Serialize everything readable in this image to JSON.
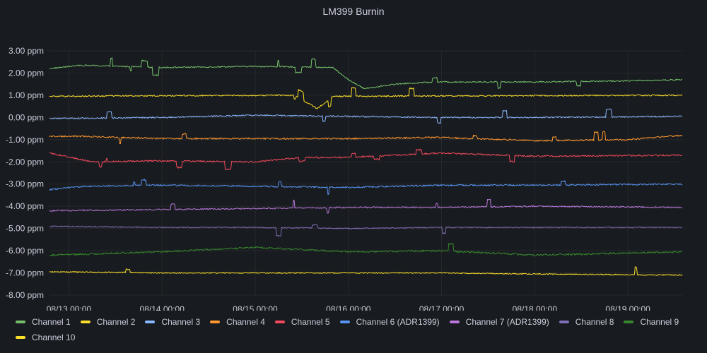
{
  "panel": {
    "title": "LM399 Burnin"
  },
  "chart_data": {
    "type": "line",
    "title": "LM399 Burnin",
    "y_unit": "ppm",
    "ylim": [
      -8.0,
      3.0
    ],
    "y_ticks": [
      "3.00 ppm",
      "2.00 ppm",
      "1.00 ppm",
      "0.00 ppm",
      "-1.00 ppm",
      "-2.00 ppm",
      "-3.00 ppm",
      "-4.00 ppm",
      "-5.00 ppm",
      "-6.00 ppm",
      "-7.00 ppm",
      "-8.00 ppm"
    ],
    "x_ticks": [
      "08/13 00:00",
      "08/14 00:00",
      "08/15 00:00",
      "08/16 00:00",
      "08/17 00:00",
      "08/18 00:00",
      "08/19 00:00"
    ],
    "x_range_days": [
      "08/12 19:00",
      "08/19 14:00"
    ],
    "grid": true,
    "legend_position": "bottom",
    "series": [
      {
        "name": "Channel 1",
        "color": "#73bf69",
        "noise": 0.03,
        "spikes": 0.006,
        "points": [
          [
            "08/12 19:00",
            2.2
          ],
          [
            "08/13 03:00",
            2.35
          ],
          [
            "08/14 00:00",
            2.25
          ],
          [
            "08/15 00:00",
            2.3
          ],
          [
            "08/15 20:00",
            2.25
          ],
          [
            "08/16 00:00",
            1.7
          ],
          [
            "08/16 04:00",
            1.3
          ],
          [
            "08/16 12:00",
            1.5
          ],
          [
            "08/16 22:00",
            1.6
          ],
          [
            "08/18 00:00",
            1.6
          ],
          [
            "08/19 00:00",
            1.65
          ],
          [
            "08/19 14:00",
            1.7
          ]
        ]
      },
      {
        "name": "Channel 2",
        "color": "#fade2a",
        "noise": 0.03,
        "spikes": 0.006,
        "points": [
          [
            "08/12 19:00",
            0.95
          ],
          [
            "08/14 00:00",
            0.98
          ],
          [
            "08/15 10:00",
            1.0
          ],
          [
            "08/15 16:00",
            0.4
          ],
          [
            "08/15 20:00",
            0.95
          ],
          [
            "08/17 00:00",
            0.97
          ],
          [
            "08/19 14:00",
            1.0
          ]
        ]
      },
      {
        "name": "Channel 3",
        "color": "#8ab8ff",
        "noise": 0.03,
        "spikes": 0.003,
        "points": [
          [
            "08/12 19:00",
            -0.05
          ],
          [
            "08/14 00:00",
            0.0
          ],
          [
            "08/15 00:00",
            0.1
          ],
          [
            "08/16 00:00",
            0.05
          ],
          [
            "08/17 00:00",
            0.0
          ],
          [
            "08/18 00:00",
            0.0
          ],
          [
            "08/19 14:00",
            0.05
          ]
        ]
      },
      {
        "name": "Channel 4",
        "color": "#ff9830",
        "noise": 0.035,
        "spikes": 0.006,
        "points": [
          [
            "08/12 19:00",
            -0.85
          ],
          [
            "08/13 04:00",
            -0.85
          ],
          [
            "08/14 00:00",
            -0.95
          ],
          [
            "08/15 00:00",
            -0.95
          ],
          [
            "08/16 00:00",
            -0.95
          ],
          [
            "08/17 00:00",
            -0.9
          ],
          [
            "08/18 00:00",
            -1.05
          ],
          [
            "08/19 00:00",
            -1.0
          ],
          [
            "08/19 14:00",
            -0.8
          ]
        ]
      },
      {
        "name": "Channel 5",
        "color": "#f2495c",
        "noise": 0.035,
        "spikes": 0.008,
        "points": [
          [
            "08/12 19:00",
            -1.6
          ],
          [
            "08/13 06:00",
            -2.0
          ],
          [
            "08/14 00:00",
            -1.95
          ],
          [
            "08/15 00:00",
            -2.0
          ],
          [
            "08/15 12:00",
            -1.8
          ],
          [
            "08/16 00:00",
            -1.8
          ],
          [
            "08/17 00:00",
            -1.6
          ],
          [
            "08/18 00:00",
            -1.75
          ],
          [
            "08/19 14:00",
            -1.7
          ]
        ]
      },
      {
        "name": "Channel 6 (ADR1399)",
        "color": "#5794f2",
        "noise": 0.035,
        "spikes": 0.004,
        "points": [
          [
            "08/12 19:00",
            -3.25
          ],
          [
            "08/13 04:00",
            -3.1
          ],
          [
            "08/14 00:00",
            -3.05
          ],
          [
            "08/15 00:00",
            -3.1
          ],
          [
            "08/16 00:00",
            -3.15
          ],
          [
            "08/17 00:00",
            -3.05
          ],
          [
            "08/18 00:00",
            -3.05
          ],
          [
            "08/19 14:00",
            -3.0
          ]
        ]
      },
      {
        "name": "Channel 7 (ADR1399)",
        "color": "#b877d9",
        "noise": 0.03,
        "spikes": 0.003,
        "points": [
          [
            "08/12 19:00",
            -4.2
          ],
          [
            "08/14 00:00",
            -4.15
          ],
          [
            "08/15 00:00",
            -4.1
          ],
          [
            "08/16 00:00",
            -4.05
          ],
          [
            "08/17 00:00",
            -4.05
          ],
          [
            "08/18 00:00",
            -4.0
          ],
          [
            "08/19 14:00",
            -4.05
          ]
        ]
      },
      {
        "name": "Channel 8",
        "color": "#806eb7",
        "noise": 0.025,
        "spikes": 0.002,
        "points": [
          [
            "08/12 19:00",
            -4.9
          ],
          [
            "08/14 00:00",
            -4.95
          ],
          [
            "08/15 00:00",
            -4.95
          ],
          [
            "08/16 00:00",
            -5.0
          ],
          [
            "08/17 00:00",
            -4.95
          ],
          [
            "08/18 00:00",
            -4.95
          ],
          [
            "08/19 14:00",
            -4.95
          ]
        ]
      },
      {
        "name": "Channel 9",
        "color": "#37872d",
        "noise": 0.04,
        "spikes": 0.004,
        "points": [
          [
            "08/12 19:00",
            -6.2
          ],
          [
            "08/14 00:00",
            -6.05
          ],
          [
            "08/15 00:00",
            -5.85
          ],
          [
            "08/16 00:00",
            -6.05
          ],
          [
            "08/17 00:00",
            -6.0
          ],
          [
            "08/18 00:00",
            -6.2
          ],
          [
            "08/19 14:00",
            -6.05
          ]
        ]
      },
      {
        "name": "Channel 10",
        "color": "#fade2a",
        "noise": 0.025,
        "spikes": 0.002,
        "points": [
          [
            "08/12 19:00",
            -6.95
          ],
          [
            "08/14 00:00",
            -7.0
          ],
          [
            "08/15 00:00",
            -7.0
          ],
          [
            "08/16 00:00",
            -7.0
          ],
          [
            "08/17 00:00",
            -7.0
          ],
          [
            "08/18 00:00",
            -7.05
          ],
          [
            "08/19 14:00",
            -7.1
          ]
        ]
      }
    ]
  }
}
